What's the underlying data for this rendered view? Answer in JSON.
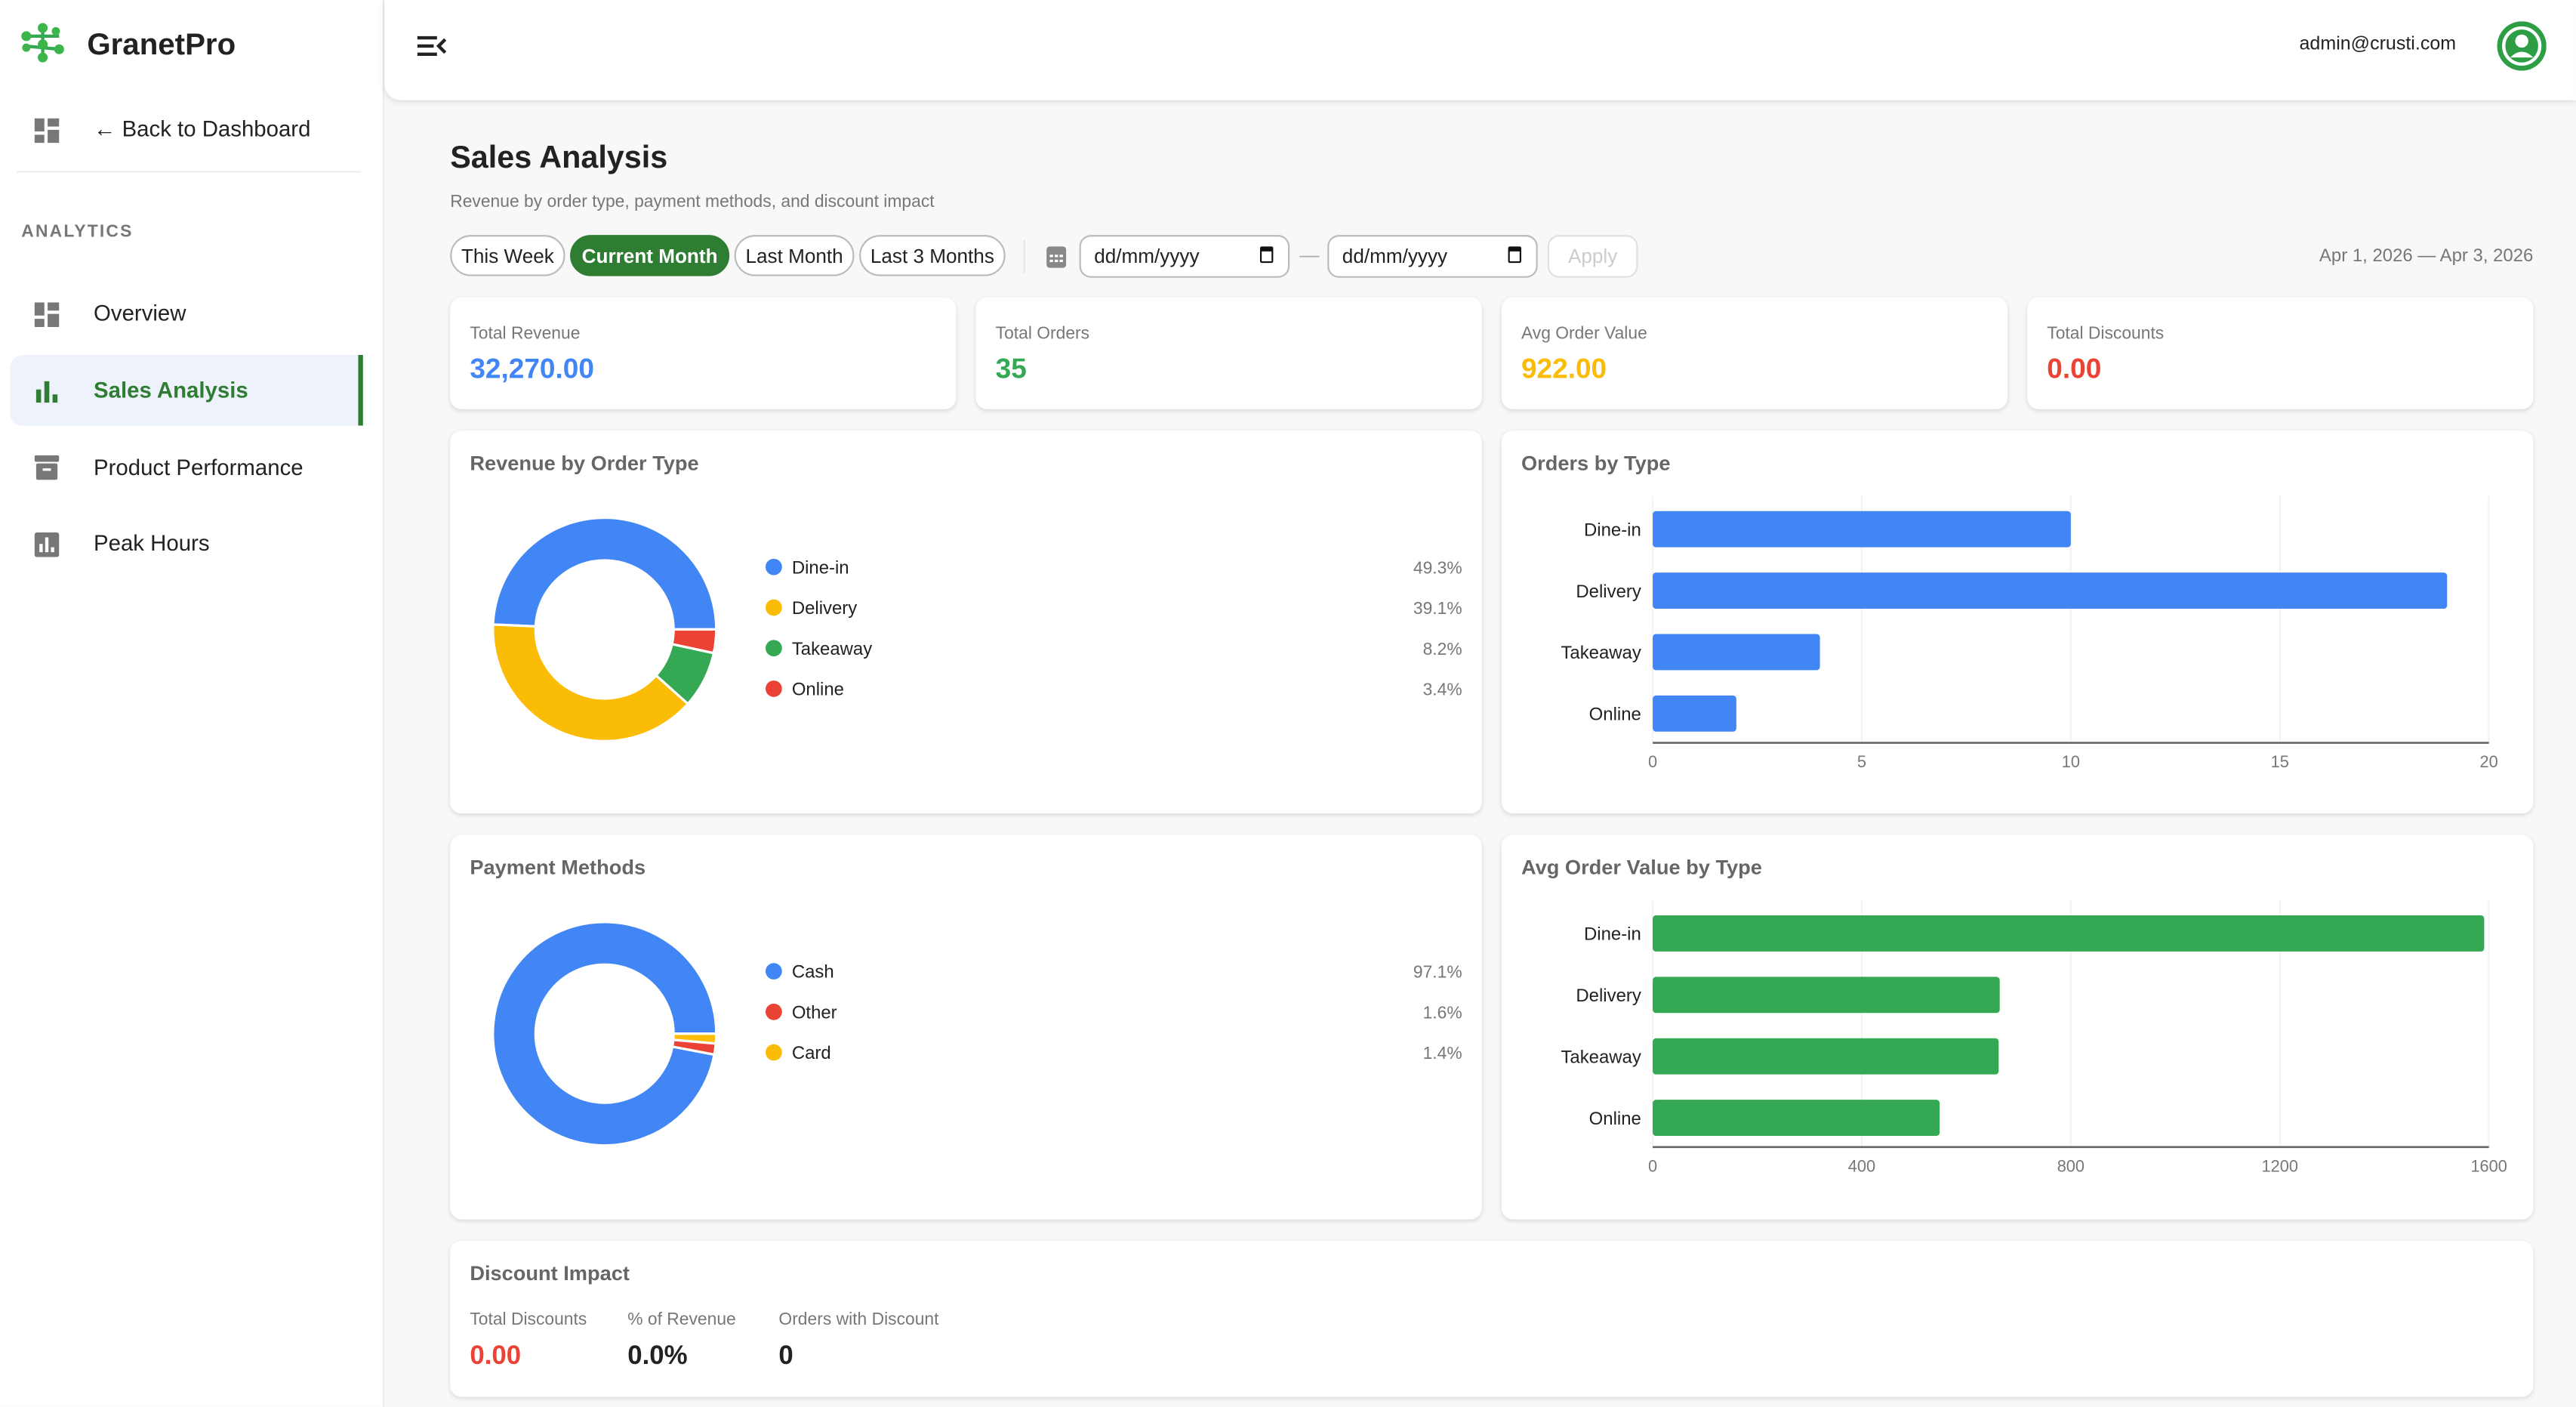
{
  "brand": {
    "name": "GranetPro"
  },
  "sidebar": {
    "back_label": "← Back to Dashboard",
    "section": "ANALYTICS",
    "items": [
      {
        "label": "Overview"
      },
      {
        "label": "Sales Analysis"
      },
      {
        "label": "Product Performance"
      },
      {
        "label": "Peak Hours"
      }
    ]
  },
  "header": {
    "user_email": "admin@crusti.com"
  },
  "page": {
    "title": "Sales Analysis",
    "subtitle": "Revenue by order type, payment methods, and discount impact"
  },
  "filters": {
    "presets": [
      "This Week",
      "Current Month",
      "Last Month",
      "Last 3 Months"
    ],
    "active": "Current Month",
    "start_placeholder": "dd/mm/yyyy",
    "end_placeholder": "dd/mm/yyyy",
    "separator": "—",
    "apply_label": "Apply",
    "range_text": "Apr 1, 2026 — Apr 3, 2026"
  },
  "stats": [
    {
      "label": "Total Revenue",
      "value": "32,270.00",
      "color": "#4285f4"
    },
    {
      "label": "Total Orders",
      "value": "35",
      "color": "#34a853"
    },
    {
      "label": "Avg Order Value",
      "value": "922.00",
      "color": "#fbbc05"
    },
    {
      "label": "Total Discounts",
      "value": "0.00",
      "color": "#ea4335"
    }
  ],
  "discount": {
    "title": "Discount Impact",
    "metrics": [
      {
        "label": "Total Discounts",
        "value": "0.00",
        "color": "#ea4335"
      },
      {
        "label": "% of Revenue",
        "value": "0.0%",
        "color": "#222222"
      },
      {
        "label": "Orders with Discount",
        "value": "0",
        "color": "#222222"
      }
    ]
  },
  "chart_data": [
    {
      "type": "pie",
      "title": "Revenue by Order Type",
      "labels": [
        "Dine-in",
        "Delivery",
        "Takeaway",
        "Online"
      ],
      "values": [
        49.3,
        39.1,
        8.2,
        3.4
      ],
      "value_labels": [
        "49.3%",
        "39.1%",
        "8.2%",
        "3.4%"
      ],
      "colors": [
        "#4285f4",
        "#fbbc05",
        "#34a853",
        "#ea4335"
      ]
    },
    {
      "type": "bar",
      "orientation": "horizontal",
      "title": "Orders by Type",
      "categories": [
        "Dine-in",
        "Delivery",
        "Takeaway",
        "Online"
      ],
      "values": [
        10,
        19,
        4,
        2
      ],
      "xlim": [
        0,
        20
      ],
      "ticks": [
        "0",
        "5",
        "10",
        "15",
        "20"
      ],
      "color": "#4285f4"
    },
    {
      "type": "pie",
      "title": "Payment Methods",
      "labels": [
        "Cash",
        "Other",
        "Card"
      ],
      "values": [
        97.1,
        1.6,
        1.4
      ],
      "value_labels": [
        "97.1%",
        "1.6%",
        "1.4%"
      ],
      "colors": [
        "#4285f4",
        "#ea4335",
        "#fbbc05"
      ]
    },
    {
      "type": "bar",
      "orientation": "horizontal",
      "title": "Avg Order Value by Type",
      "categories": [
        "Dine-in",
        "Delivery",
        "Takeaway",
        "Online"
      ],
      "values": [
        1591,
        664,
        662,
        549
      ],
      "xlim": [
        0,
        1600
      ],
      "ticks": [
        "0",
        "400",
        "800",
        "1200",
        "1600"
      ],
      "color": "#34a853"
    }
  ]
}
